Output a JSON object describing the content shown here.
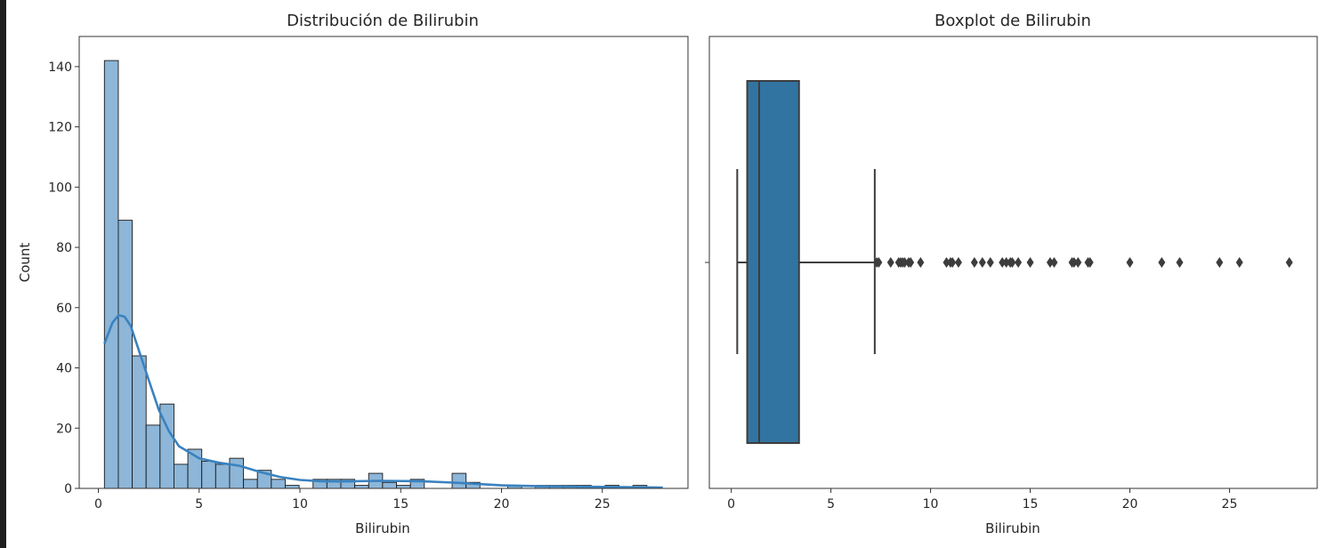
{
  "chart_data": [
    {
      "type": "histogram",
      "title": "Distribución de Bilirubin",
      "xlabel": "Bilirubin",
      "ylabel": "Count",
      "xlim": [
        -0.95,
        29.25
      ],
      "ylim": [
        0,
        150
      ],
      "xticks": [
        0,
        5,
        10,
        15,
        20,
        25
      ],
      "yticks": [
        0,
        20,
        40,
        60,
        80,
        100,
        120,
        140
      ],
      "bin_start": 0.3,
      "bin_width": 0.69,
      "counts": [
        142,
        89,
        44,
        21,
        28,
        8,
        13,
        9,
        8,
        10,
        3,
        6,
        3,
        1,
        0,
        3,
        3,
        3,
        1,
        5,
        2,
        1,
        3,
        0,
        0,
        5,
        2,
        0,
        0,
        1,
        0,
        1,
        1,
        1,
        1,
        0,
        1,
        0,
        1,
        0
      ],
      "kde": {
        "x": [
          0.3,
          0.7,
          1.0,
          1.3,
          1.6,
          2.0,
          2.5,
          3.0,
          3.5,
          4.0,
          5.0,
          6.0,
          7.0,
          8.0,
          9.0,
          10.0,
          11.0,
          12.0,
          14.0,
          16.0,
          18.0,
          20.0,
          22.0,
          25.0,
          28.0
        ],
        "y": [
          48,
          55,
          57.5,
          57,
          54,
          46,
          36,
          26,
          19,
          14,
          10,
          8.5,
          7.5,
          5.5,
          3.8,
          2.8,
          2.4,
          2.3,
          2.5,
          2.4,
          1.8,
          1.0,
          0.7,
          0.5,
          0.3
        ]
      },
      "grid": false,
      "bar_color": "#8db6d8",
      "line_color": "#3a82bf"
    },
    {
      "type": "box",
      "title": "Boxplot de Bilirubin",
      "xlabel": "Bilirubin",
      "xlim": [
        -1.1,
        29.4
      ],
      "xticks": [
        0,
        5,
        10,
        15,
        20,
        25
      ],
      "whisker_low": 0.3,
      "q1": 0.8,
      "median": 1.4,
      "q3": 3.4,
      "whisker_high": 7.2,
      "outliers": [
        7.3,
        7.4,
        8.0,
        8.4,
        8.5,
        8.6,
        8.7,
        8.9,
        9.0,
        9.5,
        10.8,
        11.0,
        11.1,
        11.4,
        12.2,
        12.6,
        13.0,
        13.6,
        13.8,
        14.0,
        14.1,
        14.4,
        15.0,
        16.0,
        16.2,
        17.1,
        17.2,
        17.4,
        17.9,
        18.0,
        20.0,
        21.6,
        22.5,
        24.5,
        25.5,
        28.0
      ],
      "grid": false,
      "box_color": "#3274a1"
    }
  ]
}
